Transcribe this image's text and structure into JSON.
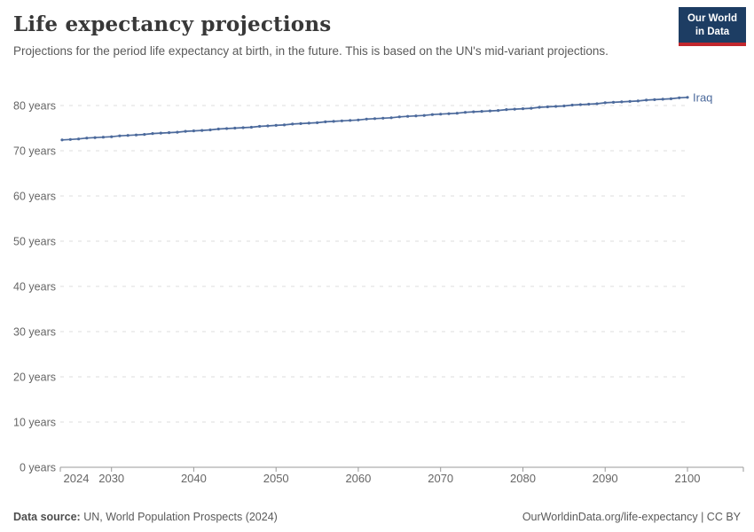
{
  "header": {
    "title": "Life expectancy projections",
    "subtitle": "Projections for the period life expectancy at birth, in the future. This is based on the UN's mid-variant projections.",
    "logo": {
      "line1": "Our World",
      "line2": "in Data",
      "bg_color": "#1d3d63",
      "accent_color": "#c1272d"
    }
  },
  "footer": {
    "source_label": "Data source:",
    "source_text": " UN, World Population Prospects (2024)",
    "credit": "OurWorldinData.org/life-expectancy | CC BY"
  },
  "chart_data": {
    "type": "line",
    "title": "Life expectancy projections",
    "xlabel": "",
    "ylabel": "",
    "xlim": [
      2024,
      2100
    ],
    "ylim": [
      0,
      86
    ],
    "x_ticks": [
      2024,
      2030,
      2040,
      2050,
      2060,
      2070,
      2080,
      2090,
      2100
    ],
    "y_ticks": [
      0,
      10,
      20,
      30,
      40,
      50,
      60,
      70,
      80
    ],
    "y_tick_suffix": " years",
    "grid": "horizontal-dashed",
    "legend_position": "end-of-line-label",
    "series": [
      {
        "name": "Iraq",
        "color": "#4C6A9C",
        "marker": "dot-every-year",
        "x": [
          2024,
          2025,
          2026,
          2027,
          2028,
          2029,
          2030,
          2031,
          2032,
          2033,
          2034,
          2035,
          2036,
          2037,
          2038,
          2039,
          2040,
          2041,
          2042,
          2043,
          2044,
          2045,
          2046,
          2047,
          2048,
          2049,
          2050,
          2051,
          2052,
          2053,
          2054,
          2055,
          2056,
          2057,
          2058,
          2059,
          2060,
          2061,
          2062,
          2063,
          2064,
          2065,
          2066,
          2067,
          2068,
          2069,
          2070,
          2071,
          2072,
          2073,
          2074,
          2075,
          2076,
          2077,
          2078,
          2079,
          2080,
          2081,
          2082,
          2083,
          2084,
          2085,
          2086,
          2087,
          2088,
          2089,
          2090,
          2091,
          2092,
          2093,
          2094,
          2095,
          2096,
          2097,
          2098,
          2099,
          2100
        ],
        "values": [
          72.4,
          72.5,
          72.6,
          72.8,
          72.9,
          73.0,
          73.1,
          73.3,
          73.4,
          73.5,
          73.6,
          73.8,
          73.9,
          74.0,
          74.1,
          74.3,
          74.4,
          74.5,
          74.6,
          74.8,
          74.9,
          75.0,
          75.1,
          75.2,
          75.4,
          75.5,
          75.6,
          75.7,
          75.9,
          76.0,
          76.1,
          76.2,
          76.4,
          76.5,
          76.6,
          76.7,
          76.8,
          77.0,
          77.1,
          77.2,
          77.3,
          77.5,
          77.6,
          77.7,
          77.8,
          78.0,
          78.1,
          78.2,
          78.3,
          78.5,
          78.6,
          78.7,
          78.8,
          78.9,
          79.1,
          79.2,
          79.3,
          79.4,
          79.6,
          79.7,
          79.8,
          79.9,
          80.1,
          80.2,
          80.3,
          80.4,
          80.6,
          80.7,
          80.8,
          80.9,
          81.0,
          81.2,
          81.3,
          81.4,
          81.5,
          81.7,
          81.8
        ]
      }
    ]
  }
}
